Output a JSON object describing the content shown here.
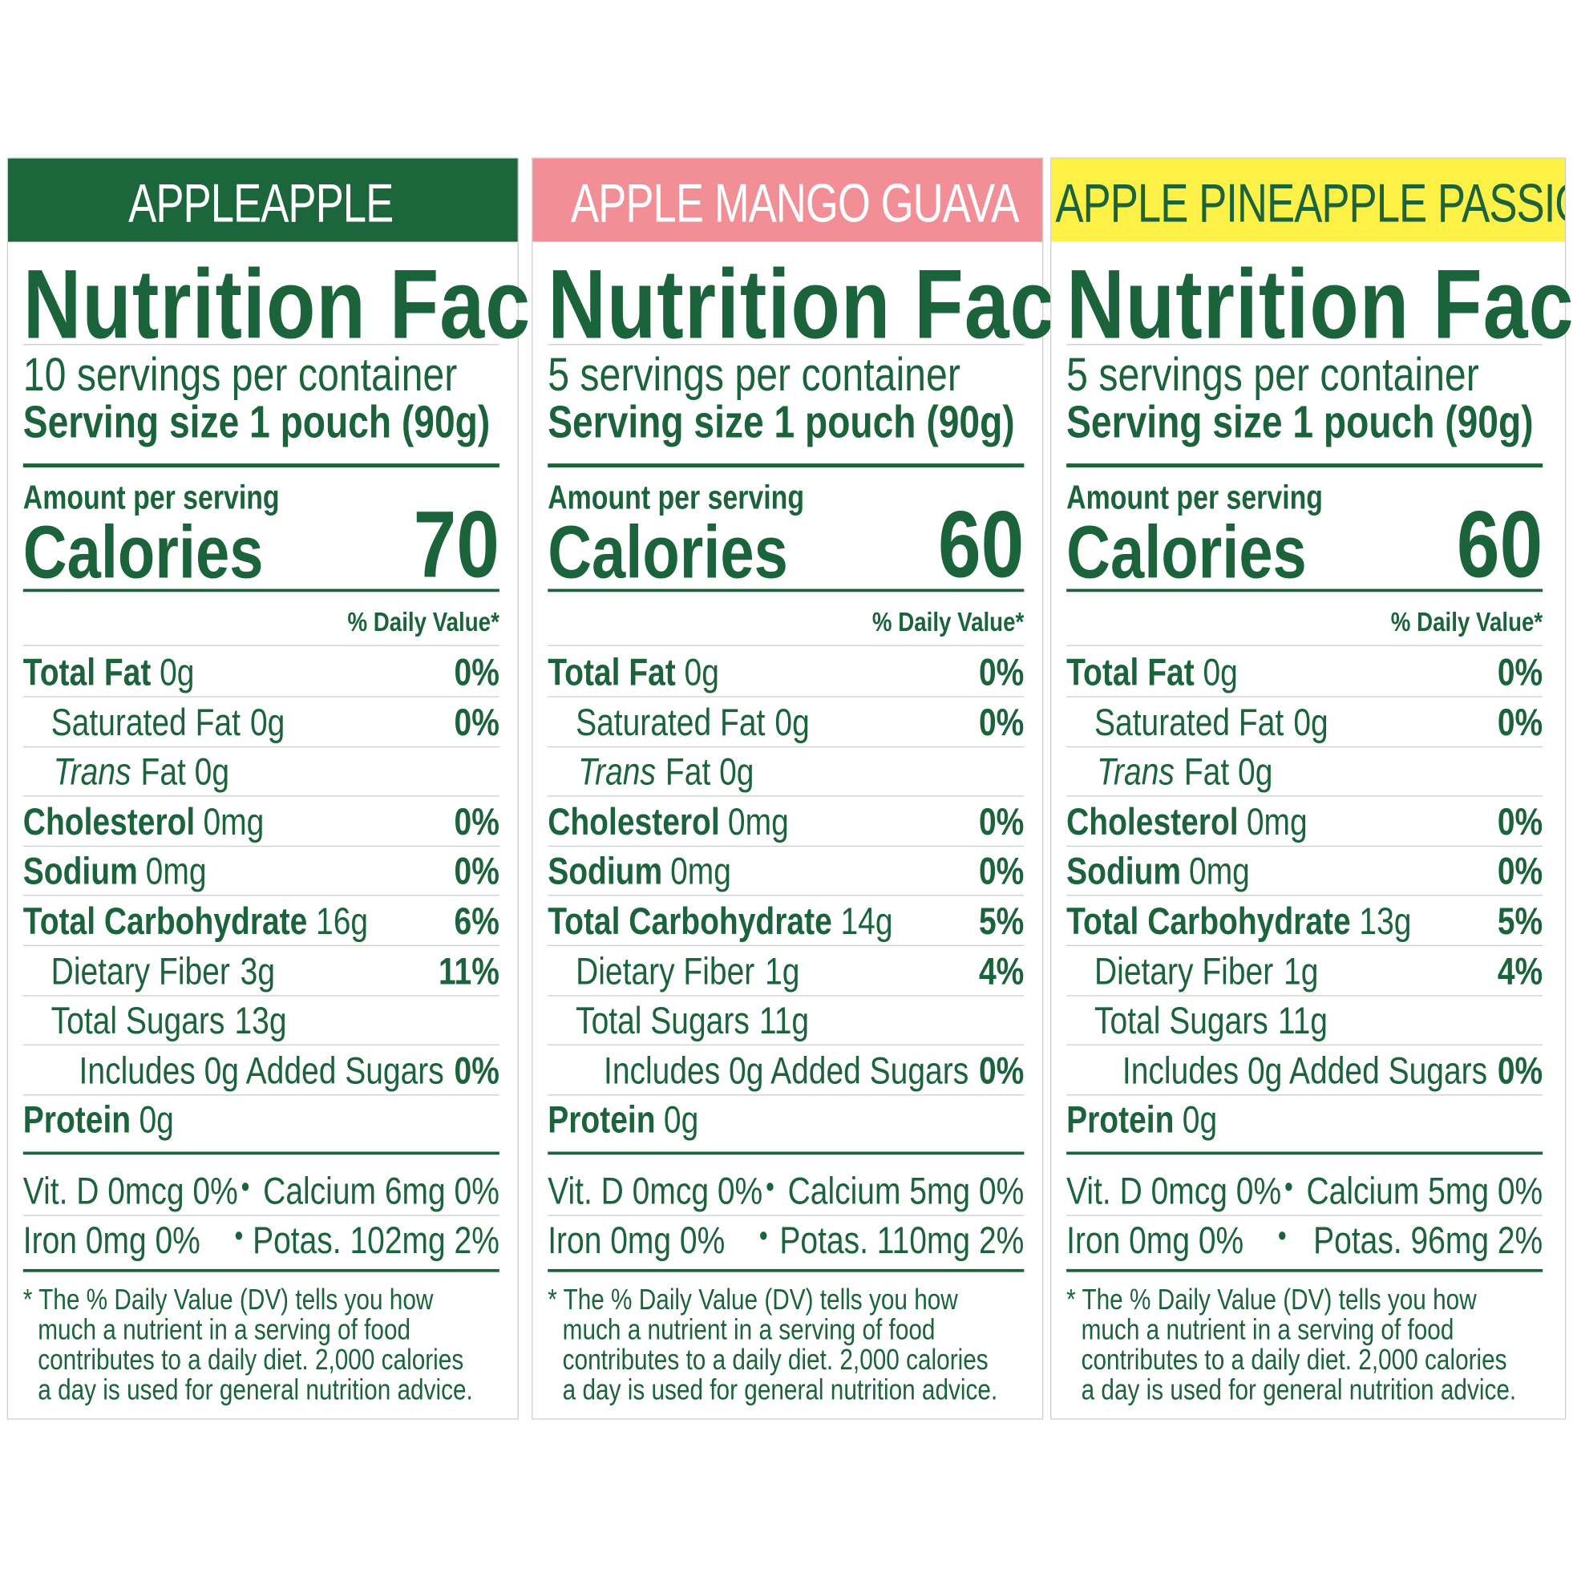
{
  "colors": {
    "text": "#1b633a"
  },
  "panels": [
    {
      "flavor": "APPLEAPPLE",
      "header_bg": "#1b663b",
      "header_fg": "#ffffff",
      "title": "Nutrition Facts",
      "servings": "10 servings per container",
      "serving_size": "Serving size 1 pouch (90g)",
      "amount_label": "Amount per serving",
      "calories_label": "Calories",
      "calories": "70",
      "dv_header": "% Daily Value*",
      "rows": [
        {
          "name": "Total Fat",
          "amount": "0g",
          "dv": "0%",
          "style": "bold"
        },
        {
          "name": "Saturated Fat",
          "amount": "0g",
          "dv": "0%",
          "style": "indent"
        },
        {
          "name": "Trans",
          "amount": "Fat 0g",
          "dv": "",
          "style": "trans"
        },
        {
          "name": "Cholesterol",
          "amount": "0mg",
          "dv": "0%",
          "style": "bold"
        },
        {
          "name": "Sodium",
          "amount": "0mg",
          "dv": "0%",
          "style": "bold"
        },
        {
          "name": "Total Carbohydrate",
          "amount": "16g",
          "dv": "6%",
          "style": "bold"
        },
        {
          "name": "Dietary Fiber",
          "amount": "3g",
          "dv": "11%",
          "style": "indent"
        },
        {
          "name": "Total Sugars",
          "amount": "13g",
          "dv": "",
          "style": "indent"
        },
        {
          "name": "Includes 0g Added Sugars",
          "amount": "",
          "dv": "0%",
          "style": "indent2"
        },
        {
          "name": "Protein",
          "amount": "0g",
          "dv": "",
          "style": "bold"
        }
      ],
      "vitd": "Vit. D 0mcg 0%",
      "calcium": "Calcium 6mg 0%",
      "iron": "Iron 0mg 0%",
      "potas": "Potas. 102mg 2%",
      "bullet": "•",
      "footnote": [
        "* The % Daily Value (DV) tells you how",
        "much a nutrient in a serving of food",
        "contributes to a daily diet. 2,000 calories",
        "a day is used for general nutrition advice."
      ]
    },
    {
      "flavor": "APPLE MANGO GUAVA",
      "header_bg": "#f28e96",
      "header_fg": "#ffffff",
      "title": "Nutrition Facts",
      "servings": "5 servings per container",
      "serving_size": "Serving size 1 pouch (90g)",
      "amount_label": "Amount per serving",
      "calories_label": "Calories",
      "calories": "60",
      "dv_header": "% Daily Value*",
      "rows": [
        {
          "name": "Total Fat",
          "amount": "0g",
          "dv": "0%",
          "style": "bold"
        },
        {
          "name": "Saturated Fat",
          "amount": "0g",
          "dv": "0%",
          "style": "indent"
        },
        {
          "name": "Trans",
          "amount": "Fat 0g",
          "dv": "",
          "style": "trans"
        },
        {
          "name": "Cholesterol",
          "amount": "0mg",
          "dv": "0%",
          "style": "bold"
        },
        {
          "name": "Sodium",
          "amount": "0mg",
          "dv": "0%",
          "style": "bold"
        },
        {
          "name": "Total Carbohydrate",
          "amount": "14g",
          "dv": "5%",
          "style": "bold"
        },
        {
          "name": "Dietary Fiber",
          "amount": "1g",
          "dv": "4%",
          "style": "indent"
        },
        {
          "name": "Total Sugars",
          "amount": "11g",
          "dv": "",
          "style": "indent"
        },
        {
          "name": "Includes 0g Added Sugars",
          "amount": "",
          "dv": "0%",
          "style": "indent2"
        },
        {
          "name": "Protein",
          "amount": "0g",
          "dv": "",
          "style": "bold"
        }
      ],
      "vitd": "Vit. D 0mcg 0%",
      "calcium": "Calcium 5mg 0%",
      "iron": "Iron 0mg 0%",
      "potas": "Potas. 110mg 2%",
      "bullet": "•",
      "footnote": [
        "* The % Daily Value (DV) tells you how",
        "much a nutrient in a serving of food",
        "contributes to a daily diet. 2,000 calories",
        "a day is used for general nutrition advice."
      ]
    },
    {
      "flavor": "APPLE PINEAPPLE PASSION FRUIT",
      "header_bg": "#fdf046",
      "header_fg": "#1b633a",
      "title": "Nutrition Facts",
      "servings": "5 servings per container",
      "serving_size": "Serving size 1 pouch (90g)",
      "amount_label": "Amount per serving",
      "calories_label": "Calories",
      "calories": "60",
      "dv_header": "% Daily Value*",
      "rows": [
        {
          "name": "Total Fat",
          "amount": "0g",
          "dv": "0%",
          "style": "bold"
        },
        {
          "name": "Saturated Fat",
          "amount": "0g",
          "dv": "0%",
          "style": "indent"
        },
        {
          "name": "Trans",
          "amount": "Fat 0g",
          "dv": "",
          "style": "trans"
        },
        {
          "name": "Cholesterol",
          "amount": "0mg",
          "dv": "0%",
          "style": "bold"
        },
        {
          "name": "Sodium",
          "amount": "0mg",
          "dv": "0%",
          "style": "bold"
        },
        {
          "name": "Total Carbohydrate",
          "amount": "13g",
          "dv": "5%",
          "style": "bold"
        },
        {
          "name": "Dietary Fiber",
          "amount": "1g",
          "dv": "4%",
          "style": "indent"
        },
        {
          "name": "Total Sugars",
          "amount": "11g",
          "dv": "",
          "style": "indent"
        },
        {
          "name": "Includes 0g Added Sugars",
          "amount": "",
          "dv": "0%",
          "style": "indent2"
        },
        {
          "name": "Protein",
          "amount": "0g",
          "dv": "",
          "style": "bold"
        }
      ],
      "vitd": "Vit. D 0mcg 0%",
      "calcium": "Calcium 5mg 0%",
      "iron": "Iron 0mg 0%",
      "potas": "Potas. 96mg 2%",
      "bullet": "•",
      "footnote": [
        "* The % Daily Value (DV) tells you how",
        "much a nutrient in a serving of food",
        "contributes to a daily diet. 2,000 calories",
        "a day is used for general nutrition advice."
      ]
    }
  ]
}
